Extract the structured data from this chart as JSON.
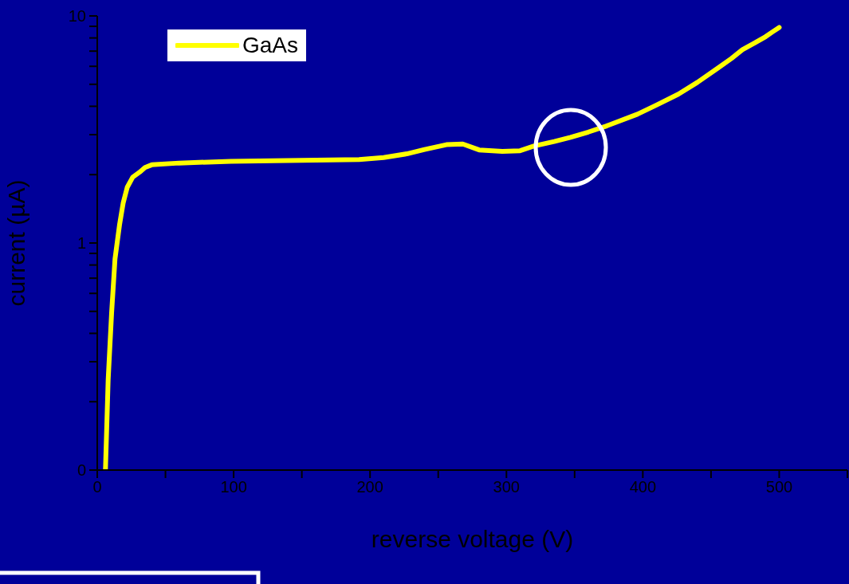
{
  "chart_data": {
    "type": "line",
    "xlabel": "reverse voltage (V)",
    "ylabel": "current (µA)",
    "log": "y",
    "legend": "top left",
    "xlim": [
      0,
      550
    ],
    "xticks": [
      0,
      {
        "value": 50,
        "label": null
      },
      100,
      {
        "value": 150,
        "label": null
      },
      200,
      {
        "value": 250,
        "label": null
      },
      300,
      {
        "value": 350,
        "label": null
      },
      400,
      {
        "value": 450,
        "label": null
      },
      500,
      {
        "value": 550,
        "label": null
      }
    ],
    "ylim": [
      0.1,
      10
    ],
    "yticks": [
      {
        "value": 0.1,
        "label": "0"
      },
      {
        "value": 0.2,
        "label": null
      },
      {
        "value": 0.3,
        "label": null
      },
      {
        "value": 0.4,
        "label": null
      },
      {
        "value": 0.5,
        "label": null
      },
      {
        "value": 0.6,
        "label": null
      },
      {
        "value": 0.7,
        "label": null
      },
      {
        "value": 0.8,
        "label": null
      },
      {
        "value": 0.9,
        "label": null
      },
      1,
      {
        "value": 2,
        "label": null
      },
      {
        "value": 3,
        "label": null
      },
      {
        "value": 4,
        "label": null
      },
      {
        "value": 5,
        "label": null
      },
      {
        "value": 6,
        "label": null
      },
      {
        "value": 7,
        "label": null
      },
      {
        "value": 8,
        "label": null
      },
      {
        "value": 9,
        "label": null
      },
      10
    ],
    "series": [
      {
        "name": "GaAs",
        "color": "#ffff00",
        "x": [
          6,
          8,
          10.5,
          13,
          16.4,
          19,
          22,
          26,
          31,
          35,
          40,
          60,
          98,
          150,
          192,
          210,
          227,
          240,
          256,
          268,
          280,
          297,
          310,
          320,
          335,
          347,
          360,
          373,
          396,
          410,
          426,
          440,
          455,
          465,
          473,
          482,
          490,
          495,
          500
        ],
        "values": [
          0.1,
          0.25,
          0.49,
          0.85,
          1.21,
          1.5,
          1.76,
          1.95,
          2.05,
          2.15,
          2.21,
          2.25,
          2.29,
          2.31,
          2.33,
          2.38,
          2.47,
          2.58,
          2.71,
          2.73,
          2.57,
          2.53,
          2.55,
          2.67,
          2.8,
          2.92,
          3.08,
          3.27,
          3.69,
          4.05,
          4.52,
          5.1,
          5.89,
          6.5,
          7.1,
          7.6,
          8.1,
          8.5,
          8.9
        ]
      }
    ]
  }
}
